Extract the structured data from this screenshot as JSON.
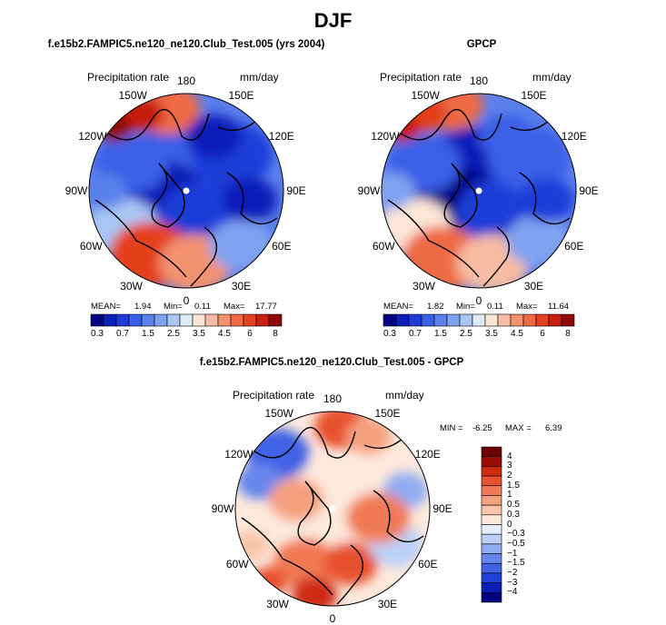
{
  "figure": {
    "title": "DJF",
    "colors": {
      "land_outline": "#000000",
      "abs_scale": [
        "#000080",
        "#0a1fb8",
        "#1e3cd8",
        "#3a5ee6",
        "#5a80ec",
        "#7fa2f0",
        "#a9c6f4",
        "#dfeafa",
        "#fde6d8",
        "#f7bca3",
        "#f3926f",
        "#ee6a44",
        "#e5401f",
        "#c81e0d",
        "#8f0a06"
      ],
      "diff_scale": [
        "#000080",
        "#0a1fb8",
        "#2140d6",
        "#3f62e4",
        "#6686ec",
        "#90acf2",
        "#bcd0f7",
        "#e3edfb",
        "#fde9dc",
        "#f9c6ac",
        "#f5a07f",
        "#f07a55",
        "#e8512f",
        "#cf2a12",
        "#9a0b05",
        "#6d0000"
      ]
    }
  },
  "chart_data": [
    {
      "type": "heatmap",
      "projection": "polar-stereographic-north",
      "title": "f.e15b2.FAMPIC5.ne120_ne120.Club_Test.005 (yrs 2004)",
      "variable_label": "Precipitation rate",
      "units": "mm/day",
      "longitude_labels": [
        "180",
        "150E",
        "120E",
        "90E",
        "60E",
        "30E",
        "0",
        "30W",
        "60W",
        "90W",
        "120W",
        "150W"
      ],
      "stats": {
        "mean_label": "MEAN=",
        "mean": "1.94",
        "min_label": "Min=",
        "min": "0.11",
        "max_label": "Max=",
        "max": "17.77"
      },
      "colorbar_ticks": [
        "0.3",
        "0.7",
        "1.5",
        "2.5",
        "3.5",
        "4.5",
        "6",
        "8"
      ]
    },
    {
      "type": "heatmap",
      "projection": "polar-stereographic-north",
      "title": "GPCP",
      "variable_label": "Precipitation rate",
      "units": "mm/day",
      "longitude_labels": [
        "180",
        "150E",
        "120E",
        "90E",
        "60E",
        "30E",
        "0",
        "30W",
        "60W",
        "90W",
        "120W",
        "150W"
      ],
      "stats": {
        "mean_label": "MEAN=",
        "mean": "1.82",
        "min_label": "Min=",
        "min": "0.11",
        "max_label": "Max=",
        "max": "11.64"
      },
      "colorbar_ticks": [
        "0.3",
        "0.7",
        "1.5",
        "2.5",
        "3.5",
        "4.5",
        "6",
        "8"
      ]
    },
    {
      "type": "heatmap",
      "projection": "polar-stereographic-north",
      "title": "f.e15b2.FAMPIC5.ne120_ne120.Club_Test.005 - GPCP",
      "variable_label": "Precipitation rate",
      "units": "mm/day",
      "longitude_labels": [
        "180",
        "150E",
        "120E",
        "90E",
        "60E",
        "30E",
        "0",
        "30W",
        "60W",
        "90W",
        "120W",
        "150W"
      ],
      "stats": {
        "min_label": "MIN =",
        "min": "-6.25",
        "max_label": "MAX =",
        "max": "6.39"
      },
      "colorbar_ticks": [
        "4",
        "3",
        "2",
        "1.5",
        "1",
        "0.5",
        "0.3",
        "0",
        "−0.3",
        "−0.5",
        "−1",
        "−1.5",
        "−2",
        "−3",
        "−4"
      ]
    }
  ]
}
